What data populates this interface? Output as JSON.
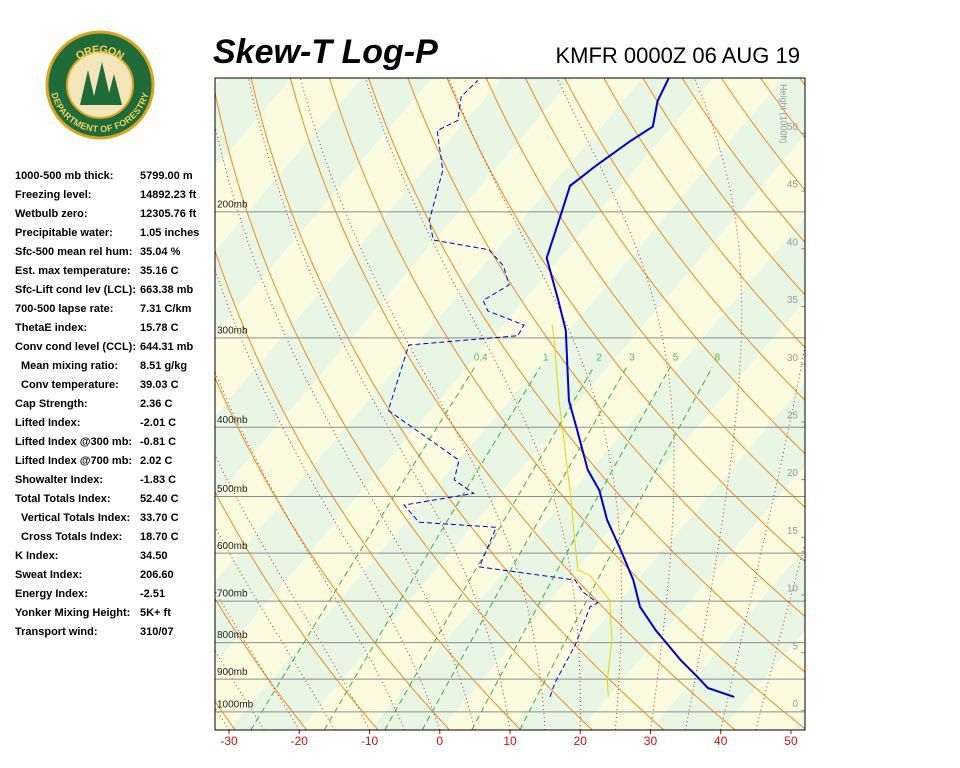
{
  "chart_data": {
    "type": "skew-t",
    "title": "Skew-T Log-P",
    "subtitle": "KMFR 0000Z 06 AUG 19",
    "logo": {
      "top": "OREGON",
      "bottom": "DEPARTMENT OF FORESTRY"
    },
    "indices": [
      {
        "label": "1000-500 mb thick:",
        "value": "5799.00 m"
      },
      {
        "label": "Freezing level:",
        "value": "14892.23 ft"
      },
      {
        "label": "Wetbulb zero:",
        "value": "12305.76 ft"
      },
      {
        "label": "Precipitable water:",
        "value": "1.05 inches"
      },
      {
        "label": "Sfc-500 mean rel hum:",
        "value": "35.04 %"
      },
      {
        "label": "Est. max temperature:",
        "value": "35.16 C"
      },
      {
        "label": "Sfc-Lift cond lev (LCL):",
        "value": "663.38 mb"
      },
      {
        "label": "700-500 lapse rate:",
        "value": "7.31 C/km"
      },
      {
        "label": "ThetaE index:",
        "value": "15.78 C"
      },
      {
        "label": "Conv cond level (CCL):",
        "value": "644.31 mb"
      },
      {
        "label": "Mean mixing ratio:",
        "value": "8.51 g/kg",
        "indent": true
      },
      {
        "label": "Conv temperature:",
        "value": "39.03 C",
        "indent": true
      },
      {
        "label": "Cap Strength:",
        "value": "2.36 C"
      },
      {
        "label": "Lifted Index:",
        "value": "-2.01 C"
      },
      {
        "label": "Lifted Index @300 mb:",
        "value": "-0.81 C"
      },
      {
        "label": "Lifted Index @700 mb:",
        "value": "2.02 C"
      },
      {
        "label": "Showalter Index:",
        "value": "-1.83 C"
      },
      {
        "label": "Total Totals Index:",
        "value": "52.40 C"
      },
      {
        "label": "Vertical Totals Index:",
        "value": "33.70 C",
        "indent": true
      },
      {
        "label": "Cross Totals Index:",
        "value": "18.70 C",
        "indent": true
      },
      {
        "label": "K Index:",
        "value": "34.50"
      },
      {
        "label": "Sweat Index:",
        "value": "206.60"
      },
      {
        "label": "Energy Index:",
        "value": "-2.51"
      },
      {
        "label": "Yonker Mixing Height:",
        "value": "5K+ ft"
      },
      {
        "label": "Transport wind:",
        "value": "310/07"
      }
    ],
    "xlim": [
      -32,
      52
    ],
    "xticks": [
      -30,
      -20,
      -10,
      0,
      10,
      20,
      30,
      40,
      50
    ],
    "plim": [
      1060,
      130
    ],
    "log_scale": true,
    "pticks": [
      {
        "value": 1000,
        "label": "1000mb"
      },
      {
        "value": 900,
        "label": "900mb"
      },
      {
        "value": 800,
        "label": "800mb"
      },
      {
        "value": 700,
        "label": "700mb"
      },
      {
        "value": 600,
        "label": "600mb"
      },
      {
        "value": 500,
        "label": "500mb"
      },
      {
        "value": 400,
        "label": "400mb"
      },
      {
        "value": 300,
        "label": "300mb"
      },
      {
        "value": 200,
        "label": "200mb"
      }
    ],
    "height_label": "Height (1000ft)",
    "height_lim": [
      -1.7,
      54.8
    ],
    "height_ticks": [
      0,
      5,
      10,
      15,
      20,
      25,
      30,
      35,
      40,
      45,
      50
    ],
    "mixing_ratios": [
      0.4,
      1,
      2,
      3,
      5,
      8
    ],
    "series": [
      {
        "color": "#0000cc",
        "dash": false,
        "width": 2,
        "pressure": [
          953,
          926,
          894,
          846,
          768,
          713,
          654,
          590,
          539,
          490,
          459,
          404,
          367,
          293,
          266,
          232,
          202,
          184,
          172,
          159,
          152,
          140,
          130
        ],
        "values": [
          37.9,
          33.1,
          30.3,
          25.8,
          18.6,
          13.6,
          9.4,
          3.6,
          -1.6,
          -6.3,
          -10.4,
          -16.7,
          -21.5,
          -30.4,
          -35.1,
          -41.9,
          -45.1,
          -47.3,
          -46,
          -44.1,
          -42.7,
          -45.1,
          -46.3
        ]
      },
      {
        "color": "#0000cc",
        "dash": true,
        "width": 1,
        "pressure": [
          953,
          911,
          806,
          713,
          704,
          680,
          654,
          627,
          552,
          543,
          514,
          495,
          474,
          445,
          379,
          307,
          298,
          288,
          275,
          266,
          253,
          238,
          226,
          219,
          206,
          175,
          154,
          149,
          138,
          131
        ],
        "values": [
          11.7,
          10.7,
          9,
          6.5,
          7.1,
          3.7,
          1.1,
          -14.1,
          -16.5,
          -28.1,
          -32.3,
          -23.8,
          -28.2,
          -29.9,
          -46,
          -51,
          -36.6,
          -37,
          -43.9,
          -45.8,
          -44,
          -47.1,
          -51.1,
          -60.2,
          -63.1,
          -67.3,
          -72.9,
          -71.2,
          -73.6,
          -73.2
        ]
      },
      {
        "color": "#e6d200",
        "dash": false,
        "width": 1,
        "pressure": [
          953,
          902,
          793,
          698,
          644,
          633,
          575,
          506,
          417,
          367,
          302,
          288
        ],
        "values": [
          20,
          17.8,
          13.6,
          8.5,
          2.6,
          0.3,
          -3.8,
          -9.1,
          -17.4,
          -22.9,
          -30.9,
          -33
        ]
      }
    ]
  }
}
